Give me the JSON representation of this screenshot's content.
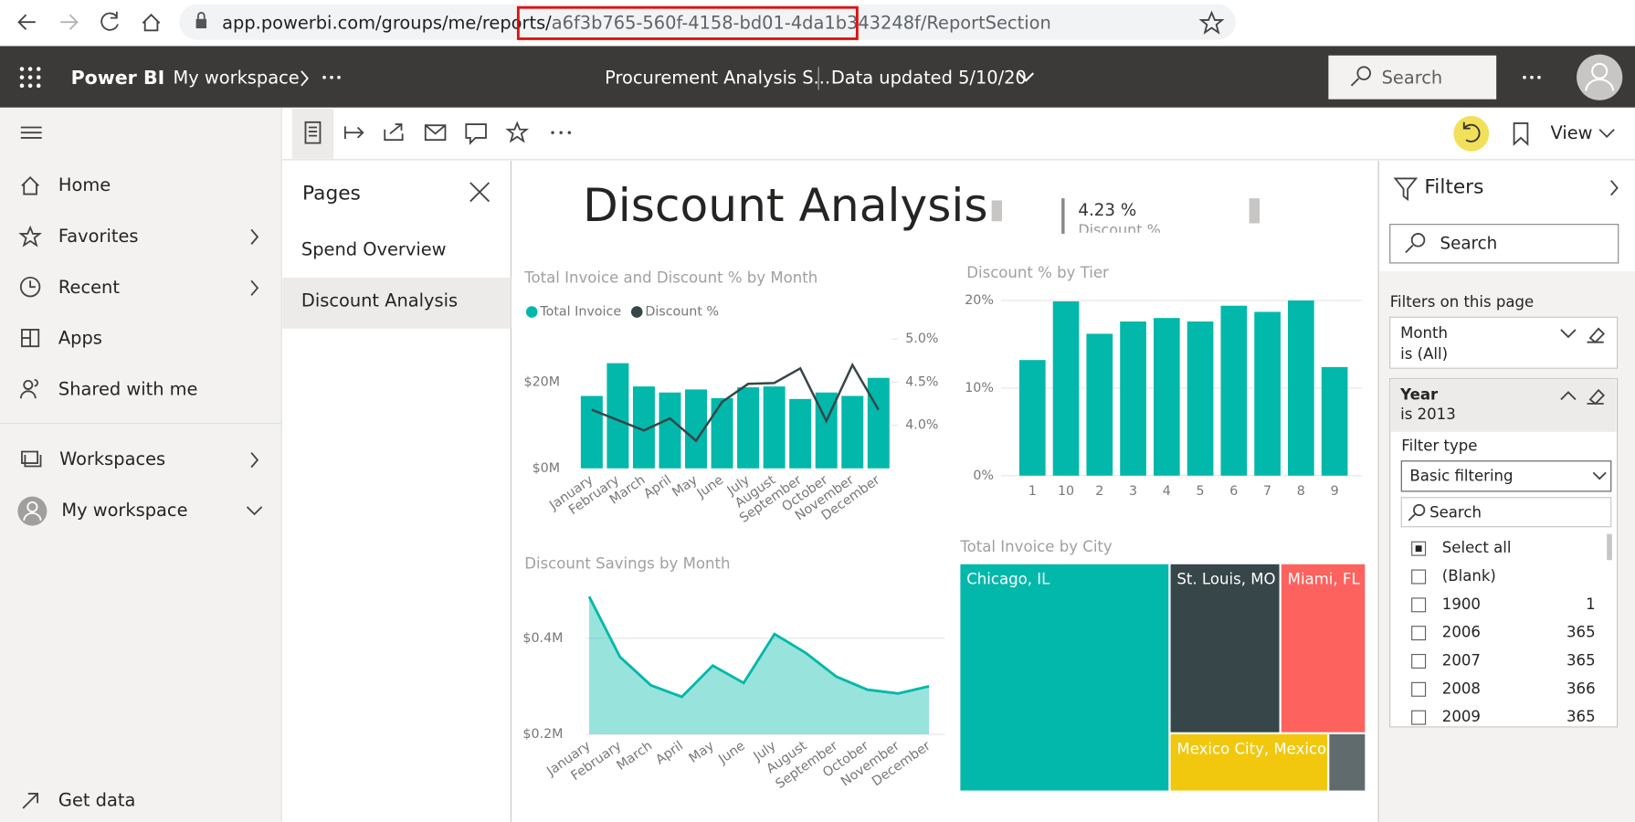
{
  "browser": {
    "url_prefix": "app.powerbi.com/groups/me/reports/",
    "url_highlight": "a6f3b765-560f-4158-bd01-4da1b343248f",
    "url_suffix": "/ReportSection"
  },
  "header": {
    "app": "Power BI",
    "workspace": "My workspace",
    "report": "Procurement Analysis S...",
    "updated": "Data updated 5/10/20",
    "search": "Search"
  },
  "toolbar": {
    "view": "View"
  },
  "nav": {
    "items": [
      "Home",
      "Favorites",
      "Recent",
      "Apps",
      "Shared with me",
      "Workspaces",
      "My workspace",
      "Get data"
    ]
  },
  "pages": {
    "title": "Pages",
    "items": [
      "Spend Overview",
      "Discount Analysis"
    ]
  },
  "report": {
    "title": "Discount Analysis",
    "card": {
      "value": "4.23 %",
      "label": "Discount %"
    },
    "charts": [
      {
        "type": "combo",
        "title": "Total Invoice and Discount % by Month",
        "categories": [
          "January",
          "February",
          "March",
          "April",
          "May",
          "June",
          "July",
          "August",
          "September",
          "October",
          "November",
          "December"
        ],
        "series": [
          {
            "name": "Total Invoice",
            "color": "#01b8aa",
            "values": [
              16.8,
              24.4,
              19.0,
              17.6,
              18.3,
              16.3,
              18.8,
              19.0,
              16.1,
              17.6,
              16.8,
              21.0
            ]
          },
          {
            "name": "Discount %",
            "color": "#374649",
            "axis": "y2",
            "values": [
              4.18,
              4.06,
              3.94,
              4.08,
              3.82,
              4.27,
              4.48,
              4.49,
              4.66,
              4.05,
              4.7,
              4.18
            ]
          }
        ],
        "ylim": [
          0,
          30
        ],
        "yticks": [
          {
            "value": 0,
            "label": "$0M"
          },
          {
            "value": 20,
            "label": "$20M"
          }
        ],
        "y2lim": [
          3.5,
          5.0
        ],
        "y2ticks": [
          {
            "value": 4.0,
            "label": "4.0%"
          },
          {
            "value": 4.5,
            "label": "4.5%"
          },
          {
            "value": 5.0,
            "label": "5.0%"
          }
        ]
      },
      {
        "type": "bar",
        "title": "Discount % by Tier",
        "categories": [
          "1",
          "10",
          "2",
          "3",
          "4",
          "5",
          "6",
          "7",
          "8",
          "9"
        ],
        "values": [
          13.2,
          19.9,
          16.2,
          17.6,
          18.0,
          17.6,
          19.4,
          18.7,
          20.0,
          12.4
        ],
        "color": "#01b8aa",
        "ylim": [
          0,
          20
        ],
        "yticks": [
          {
            "value": 0,
            "label": "0%"
          },
          {
            "value": 10,
            "label": "10%"
          },
          {
            "value": 20,
            "label": "20%"
          }
        ],
        "grid": true
      },
      {
        "type": "area",
        "title": "Discount Savings by Month",
        "categories": [
          "January",
          "February",
          "March",
          "April",
          "May",
          "June",
          "July",
          "August",
          "September",
          "October",
          "November",
          "December"
        ],
        "values": [
          0.487,
          0.361,
          0.302,
          0.278,
          0.343,
          0.307,
          0.409,
          0.37,
          0.32,
          0.293,
          0.285,
          0.3
        ],
        "color": "#01b8aa",
        "ylim": [
          0.2,
          0.5
        ],
        "yticks": [
          {
            "value": 0.2,
            "label": "$0.2M"
          },
          {
            "value": 0.4,
            "label": "$0.4M"
          }
        ],
        "grid": true
      },
      {
        "type": "treemap",
        "title": "Total Invoice by City",
        "categories": [
          "Chicago, IL",
          "St. Louis, MO",
          "Miami, FL",
          "Mexico City, Mexico",
          null
        ],
        "values": [
          51.4,
          20.3,
          15.7,
          10.1,
          2.4
        ],
        "colors": [
          "#01b8aa",
          "#374649",
          "#fd625e",
          "#f2c80f",
          "#5f6b6d"
        ]
      }
    ]
  },
  "filters": {
    "title": "Filters",
    "search": "Search",
    "section": "Filters on this page",
    "cards": [
      {
        "field": "Month",
        "state": "is (All)"
      },
      {
        "field": "Year",
        "state": "is 2013",
        "filter_type_label": "Filter type",
        "filter_type": "Basic filtering",
        "search": "Search",
        "items": [
          {
            "label": "Select all",
            "checked": true
          },
          {
            "label": "(Blank)"
          },
          {
            "label": "1900",
            "count": "1"
          },
          {
            "label": "2006",
            "count": "365"
          },
          {
            "label": "2007",
            "count": "365"
          },
          {
            "label": "2008",
            "count": "366"
          },
          {
            "label": "2009",
            "count": "365"
          }
        ]
      }
    ]
  }
}
